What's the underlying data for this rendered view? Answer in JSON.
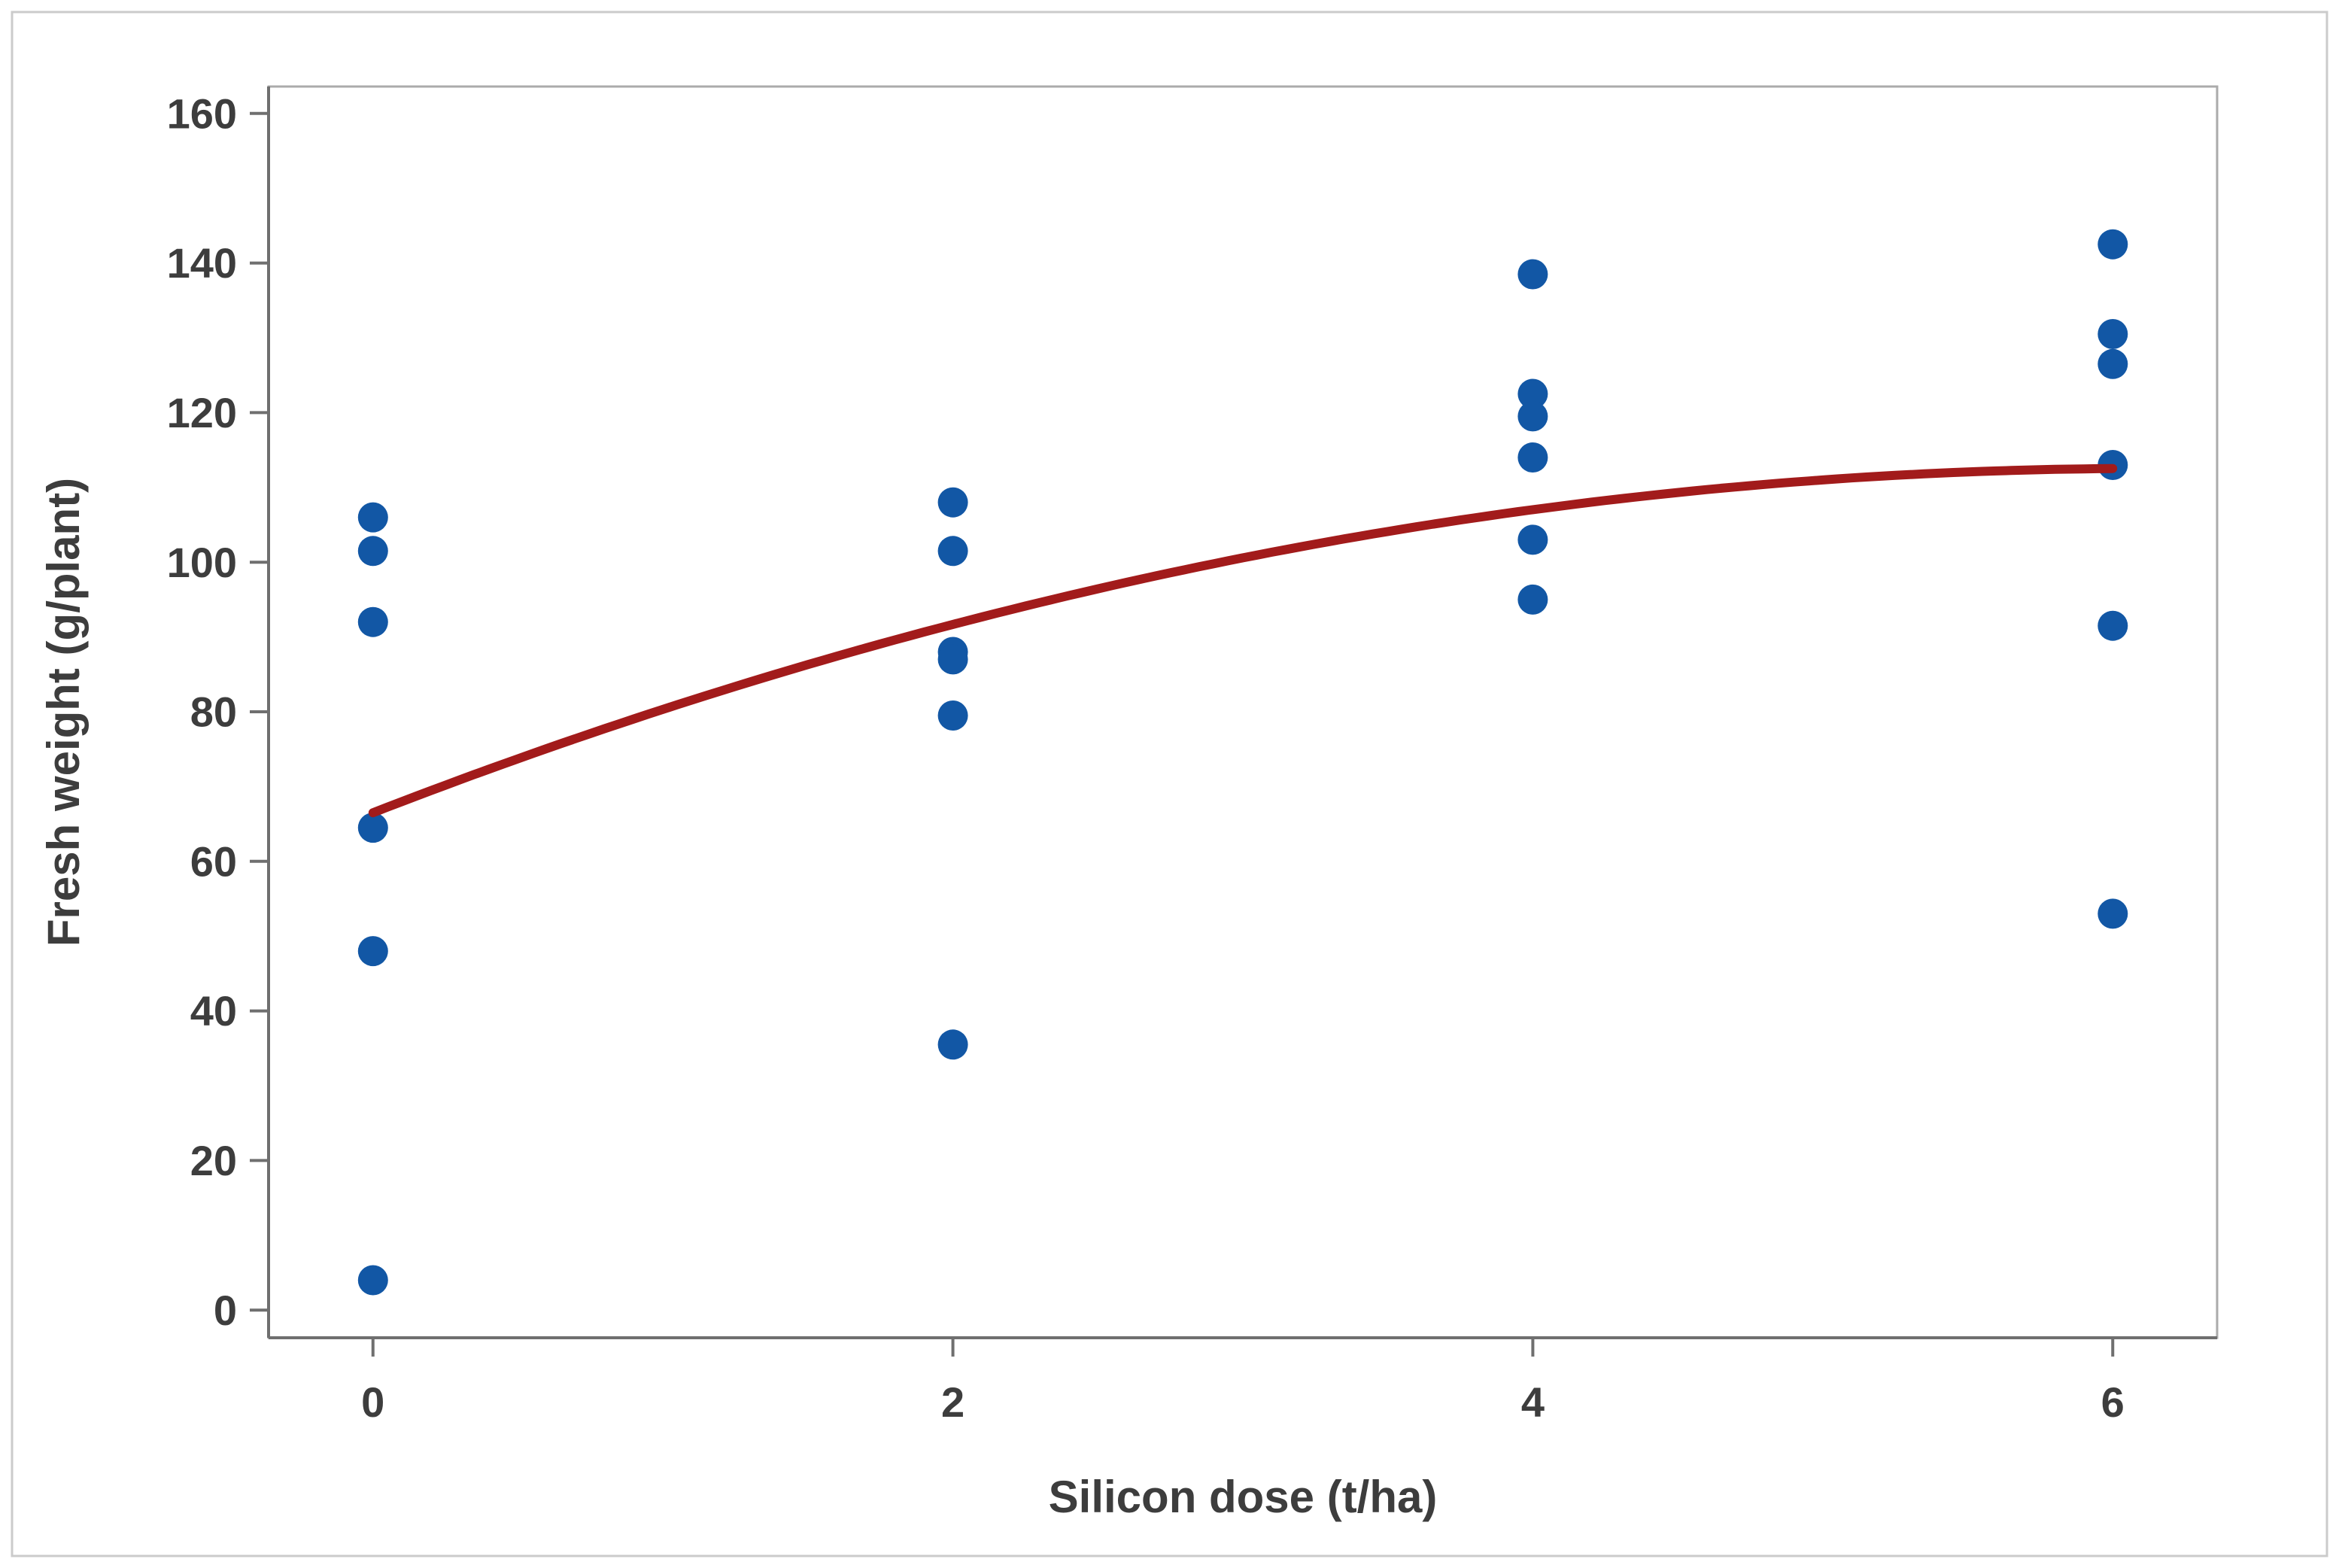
{
  "figure": {
    "background": "#ffffff",
    "border_color": "#CBCBCB"
  },
  "chart_data": {
    "type": "scatter",
    "title": "",
    "xlabel": "Silicon dose (t/ha)",
    "ylabel": "Fresh weight (g/plant)",
    "x_ticks": [
      0,
      2,
      4,
      6
    ],
    "y_ticks": [
      0,
      20,
      40,
      60,
      80,
      100,
      120,
      140,
      160
    ],
    "xlim": [
      -0.36,
      6.36
    ],
    "ylim": [
      -3.7,
      163.6
    ],
    "grid": false,
    "legend": "none",
    "colors": {
      "point": "#1257A5",
      "fit_line": "#A21B1B",
      "frame": "#ABABAB",
      "axis": "#6F6F6F",
      "text": "#3D3D3D"
    },
    "series": [
      {
        "name": "fresh-weight-observations",
        "type": "scatter",
        "marker": "circle",
        "points": [
          {
            "x": 0,
            "y": 106
          },
          {
            "x": 0,
            "y": 101.5
          },
          {
            "x": 0,
            "y": 92
          },
          {
            "x": 0,
            "y": 64.5
          },
          {
            "x": 0,
            "y": 48
          },
          {
            "x": 0,
            "y": 4
          },
          {
            "x": 2,
            "y": 108
          },
          {
            "x": 2,
            "y": 101.5
          },
          {
            "x": 2,
            "y": 88
          },
          {
            "x": 2,
            "y": 87
          },
          {
            "x": 2,
            "y": 79.5
          },
          {
            "x": 2,
            "y": 35.5
          },
          {
            "x": 4,
            "y": 138.5
          },
          {
            "x": 4,
            "y": 122.5
          },
          {
            "x": 4,
            "y": 119.5
          },
          {
            "x": 4,
            "y": 114
          },
          {
            "x": 4,
            "y": 103
          },
          {
            "x": 4,
            "y": 95
          },
          {
            "x": 6,
            "y": 142.5
          },
          {
            "x": 6,
            "y": 130.5
          },
          {
            "x": 6,
            "y": 126.5
          },
          {
            "x": 6,
            "y": 113
          },
          {
            "x": 6,
            "y": 91.5
          },
          {
            "x": 6,
            "y": 53
          }
        ]
      },
      {
        "name": "quadratic-fit-curve",
        "type": "fit-line",
        "coefficients": {
          "a": 66.5,
          "b": 15.05,
          "c": -1.23
        },
        "x_range": [
          0,
          6
        ]
      }
    ]
  }
}
